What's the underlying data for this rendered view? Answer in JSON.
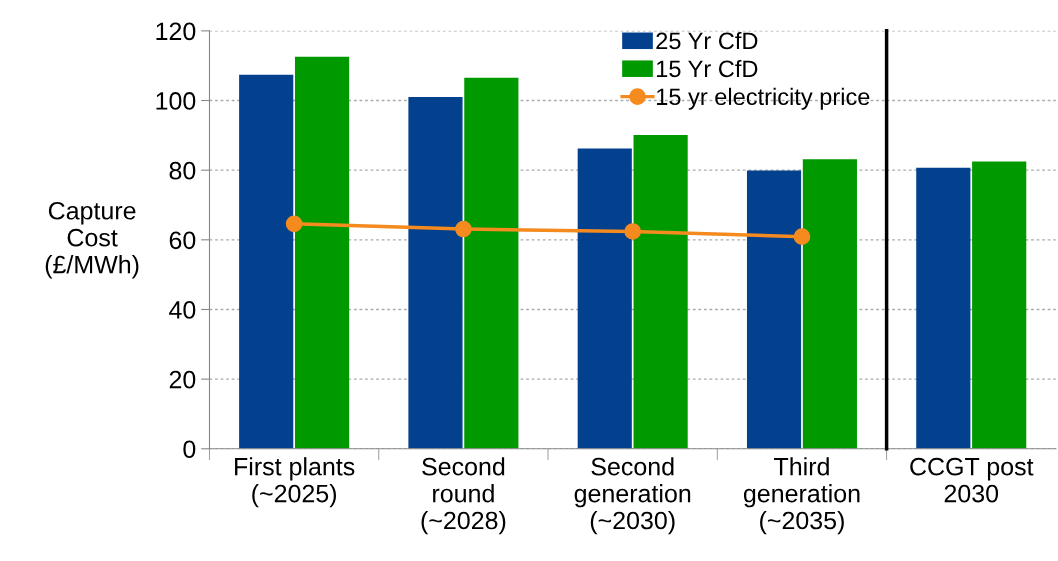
{
  "chart_data": [
    {
      "type": "bar",
      "ylabel": "Capture\nCost\n(£/MWh)",
      "categories": [
        "First plants\n(~2025)",
        "Second\nround\n(~2028)",
        "Second\ngeneration\n(~2030)",
        "Third\ngeneration\n(~2035)"
      ],
      "series": [
        {
          "name": "25 Yr CfD",
          "color": "#03418f",
          "values": [
            107.4,
            101.0,
            86.2,
            79.9
          ]
        },
        {
          "name": "15 Yr CfD",
          "color": "#009900",
          "values": [
            112.6,
            106.5,
            90.1,
            83.1
          ]
        },
        {
          "name": "15 yr electricity price",
          "type": "line",
          "color": "#f58a1f",
          "marker": "circle",
          "values": [
            64.6,
            63.1,
            62.4,
            60.9
          ]
        }
      ],
      "ylim": [
        0,
        120
      ],
      "yticks": [
        0,
        20,
        40,
        60,
        80,
        100,
        120
      ],
      "grid": "y",
      "legend": "top right"
    },
    {
      "type": "bar",
      "categories": [
        "CCGT post\n2030"
      ],
      "series": [
        {
          "color": "#03418f",
          "values": [
            80.7
          ]
        },
        {
          "color": "#009900",
          "values": [
            82.5
          ]
        }
      ],
      "ylim": [
        0,
        120
      ],
      "yticks": [
        0,
        20,
        40,
        60,
        80,
        100,
        120
      ],
      "grid": "y",
      "tick_labels": "x"
    }
  ]
}
